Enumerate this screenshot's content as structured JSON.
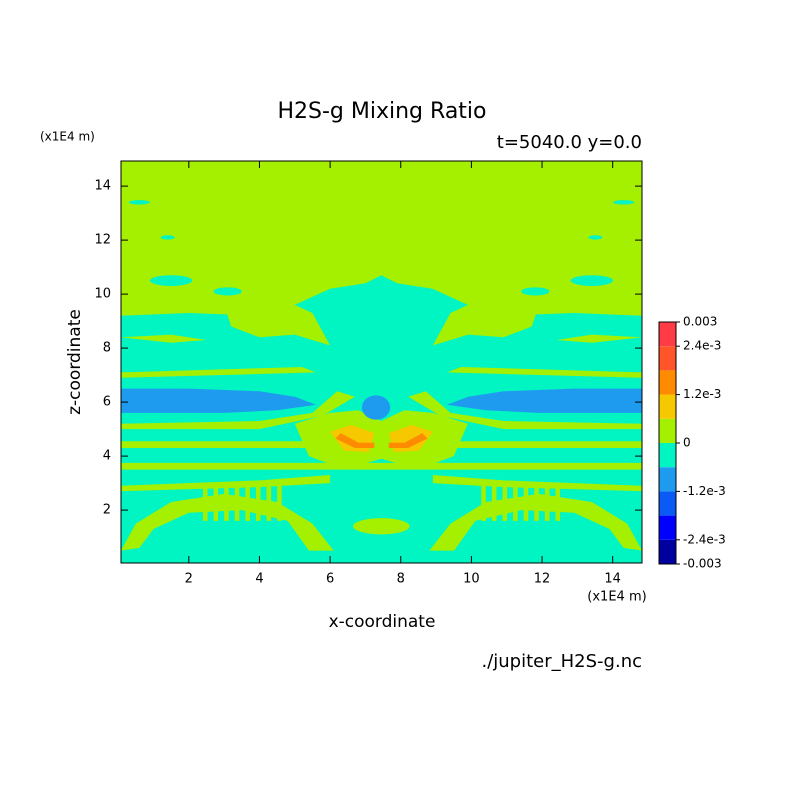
{
  "chart_data": {
    "type": "contour",
    "title": "H2S-g Mixing Ratio",
    "subtitle": "t=5040.0 y=0.0",
    "xlabel": "x-coordinate",
    "ylabel": "z-coordinate",
    "x_unit": "(x1E4 m)",
    "y_unit": "(x1E4 m)",
    "source": "./jupiter_H2S-g.nc",
    "xlim": [
      0.08,
      14.83
    ],
    "ylim": [
      0.04,
      14.93
    ],
    "xticks": [
      2,
      4,
      6,
      8,
      10,
      12,
      14
    ],
    "yticks": [
      2,
      4,
      6,
      8,
      10,
      12,
      14
    ],
    "colorbar": {
      "clim": [
        -0.003,
        0.003
      ],
      "colors": [
        "#0000a0",
        "#0000ff",
        "#0a5af5",
        "#1e9bef",
        "#00f5c3",
        "#a5f000",
        "#f5c800",
        "#ff8c00",
        "#ff5528",
        "#ff3c46"
      ],
      "ticks": [
        -0.003,
        {
          "value": -0.0024,
          "label": "-2.4e-3"
        },
        {
          "value": -0.0012,
          "label": "-1.2e-3"
        },
        0,
        {
          "value": 0.0012,
          "label": "1.2e-3"
        },
        {
          "value": 0.0024,
          "label": "2.4e-3"
        },
        0.003
      ]
    }
  }
}
